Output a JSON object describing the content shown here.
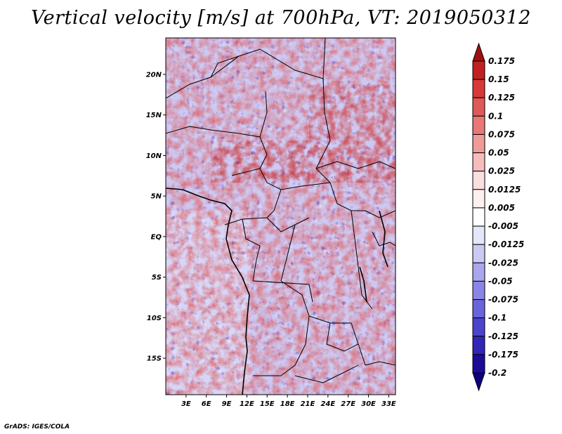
{
  "title": "Vertical velocity [m/s] at 700hPa, VT: 2019050312",
  "credit": "GrADS: IGES/COLA",
  "map": {
    "lat_ticks": [
      "20N",
      "15N",
      "10N",
      "5N",
      "EQ",
      "5S",
      "10S",
      "15S"
    ],
    "lon_ticks": [
      "3E",
      "6E",
      "9E",
      "12E",
      "15E",
      "18E",
      "21E",
      "24E",
      "27E",
      "30E",
      "33E"
    ],
    "lat_values": [
      20,
      15,
      10,
      5,
      0,
      -5,
      -10,
      -15
    ],
    "lon_values": [
      3,
      6,
      9,
      12,
      15,
      18,
      21,
      24,
      27,
      30,
      33
    ],
    "lat_range": [
      -19.5,
      24.5
    ],
    "lon_range": [
      0,
      34
    ]
  },
  "colorbar": {
    "levels": [
      "0.175",
      "0.15",
      "0.125",
      "0.1",
      "0.075",
      "0.05",
      "0.025",
      "0.0125",
      "0.005",
      "-0.005",
      "-0.0125",
      "-0.025",
      "-0.05",
      "-0.075",
      "-0.1",
      "-0.125",
      "-0.175",
      "-0.2"
    ],
    "colors": [
      "#a01010",
      "#c02020",
      "#d83838",
      "#e05858",
      "#e87878",
      "#f09a9a",
      "#f6bcbc",
      "#fbdede",
      "#fff0f0",
      "#ffffff",
      "#e6e6fa",
      "#cccaf4",
      "#aaa6ee",
      "#8a86e6",
      "#6a64dc",
      "#4c44cc",
      "#3026b8",
      "#1c0c98",
      "#0e0080"
    ]
  }
}
